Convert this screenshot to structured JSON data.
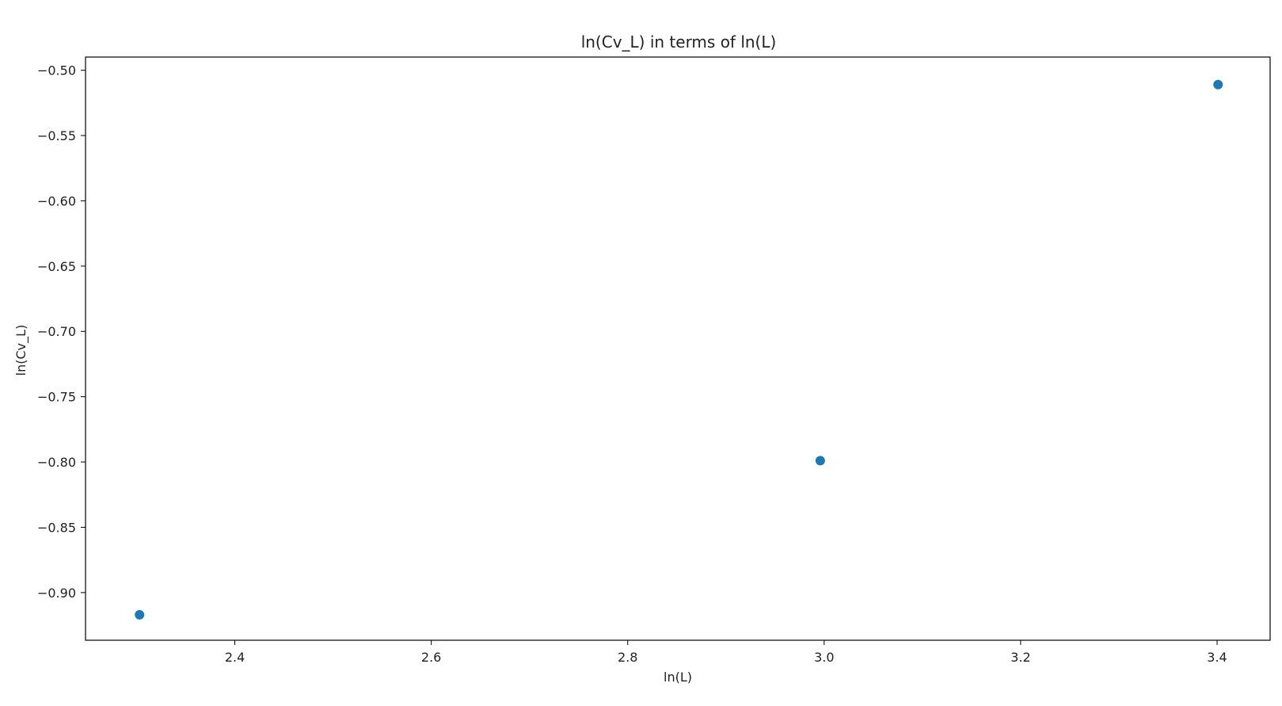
{
  "chart_data": {
    "type": "scatter",
    "title": "ln(Cv_L) in terms of ln(L)",
    "xlabel": "ln(L)",
    "ylabel": "ln(Cv_L)",
    "xlim": [
      2.248,
      3.454
    ],
    "ylim": [
      -0.9365,
      -0.4899
    ],
    "x_ticks": [
      2.4,
      2.6,
      2.8,
      3.0,
      3.2,
      3.4
    ],
    "x_tick_labels": [
      "2.4",
      "2.6",
      "2.8",
      "3.0",
      "3.2",
      "3.4"
    ],
    "y_ticks": [
      -0.5,
      -0.55,
      -0.6,
      -0.65,
      -0.7,
      -0.75,
      -0.8,
      -0.85,
      -0.9
    ],
    "y_tick_labels": [
      "−0.50",
      "−0.55",
      "−0.60",
      "−0.65",
      "−0.70",
      "−0.75",
      "−0.80",
      "−0.85",
      "−0.90"
    ],
    "grid": false,
    "series": [
      {
        "color": "#1f77b4",
        "points": [
          {
            "x": 2.303,
            "y": -0.917
          },
          {
            "x": 2.996,
            "y": -0.799
          },
          {
            "x": 3.401,
            "y": -0.511
          }
        ]
      }
    ]
  }
}
